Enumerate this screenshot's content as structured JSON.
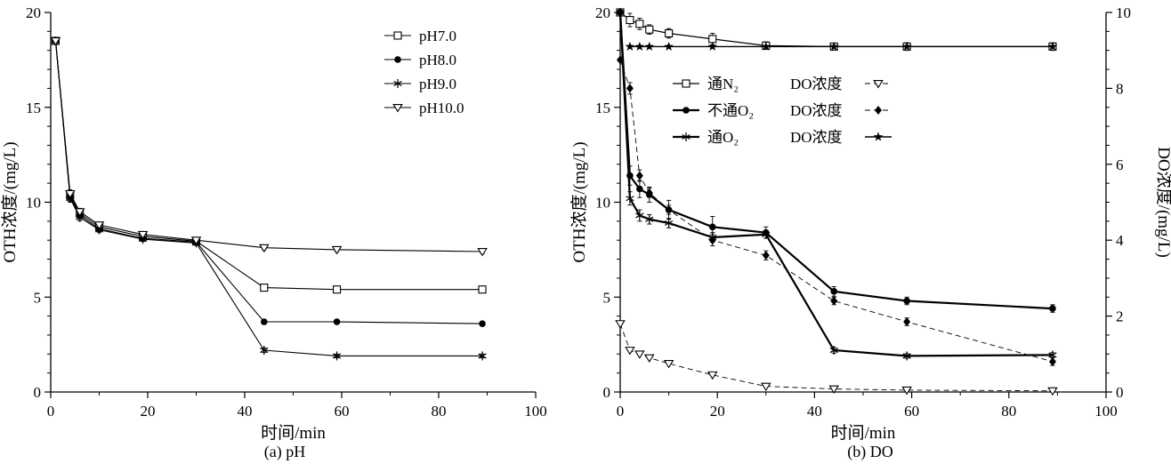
{
  "figure": {
    "background": "#ffffff",
    "ink_color": "#000000",
    "panel_captions": [
      "(a) pH",
      "(b) DO"
    ]
  },
  "chart_data": [
    {
      "type": "line",
      "caption": "(a) pH",
      "xlabel": "时间/min",
      "ylabel_left": "OTH浓度/(mg/L)",
      "xlim": [
        0,
        100
      ],
      "ylim_left": [
        0,
        20
      ],
      "xticks": [
        0,
        20,
        40,
        60,
        80,
        100
      ],
      "yticks_left": [
        0,
        5,
        10,
        15,
        20
      ],
      "x_minor": 10,
      "y_minor_left": 1,
      "series": [
        {
          "name": "pH7.0",
          "marker": "square-open",
          "line": "solid",
          "width": 1.1,
          "axis": "left",
          "x": [
            1,
            4,
            6,
            10,
            19,
            30,
            44,
            59,
            89
          ],
          "y": [
            18.5,
            10.35,
            9.4,
            8.7,
            8.2,
            7.95,
            5.5,
            5.4,
            5.4
          ],
          "yerr": [
            0,
            0.25,
            0.2,
            0.15,
            0.15,
            0.12,
            0.12,
            0.1,
            0.1
          ]
        },
        {
          "name": "pH8.0",
          "marker": "circle-filled",
          "line": "solid",
          "width": 1.1,
          "axis": "left",
          "x": [
            1,
            4,
            6,
            10,
            19,
            30,
            44,
            59,
            89
          ],
          "y": [
            18.5,
            10.3,
            9.3,
            8.6,
            8.1,
            7.9,
            3.7,
            3.7,
            3.6
          ],
          "yerr": [
            0,
            0.25,
            0.2,
            0.15,
            0.15,
            0.12,
            0.12,
            0.1,
            0.1
          ]
        },
        {
          "name": "pH9.0",
          "marker": "asterisk",
          "line": "solid",
          "width": 1.1,
          "axis": "left",
          "x": [
            1,
            4,
            6,
            10,
            19,
            30,
            44,
            59,
            89
          ],
          "y": [
            18.5,
            10.2,
            9.2,
            8.55,
            8.05,
            7.85,
            2.2,
            1.9,
            1.9
          ],
          "yerr": [
            0,
            0.2,
            0.18,
            0.15,
            0.12,
            0.12,
            0.12,
            0.1,
            0.1
          ]
        },
        {
          "name": "pH10.0",
          "marker": "triangle-down-open",
          "line": "solid",
          "width": 1.1,
          "axis": "left",
          "x": [
            1,
            4,
            6,
            10,
            19,
            30,
            44,
            59,
            89
          ],
          "y": [
            18.5,
            10.45,
            9.5,
            8.8,
            8.3,
            8.0,
            7.6,
            7.5,
            7.4
          ],
          "yerr": [
            0,
            0.2,
            0.18,
            0.15,
            0.12,
            0.12,
            0.1,
            0.1,
            0.1
          ]
        }
      ],
      "legend": {
        "type": "list",
        "entries": [
          {
            "series_index": 0,
            "label": "pH7.0"
          },
          {
            "series_index": 1,
            "label": "pH8.0"
          },
          {
            "series_index": 2,
            "label": "pH9.0"
          },
          {
            "series_index": 3,
            "label": "pH10.0"
          }
        ]
      }
    },
    {
      "type": "line",
      "caption": "(b) DO",
      "xlabel": "时间/min",
      "ylabel_left": "OTH浓度/(mg/L)",
      "ylabel_right": "DO浓度/(mg/L)",
      "xlim": [
        0,
        100
      ],
      "ylim_left": [
        0,
        20
      ],
      "ylim_right": [
        0,
        10
      ],
      "xticks": [
        0,
        20,
        40,
        60,
        80,
        100
      ],
      "yticks_left": [
        0,
        5,
        10,
        15,
        20
      ],
      "yticks_right": [
        0,
        2,
        4,
        6,
        8,
        10
      ],
      "x_minor": 10,
      "y_minor_left": 1,
      "y_minor_right": 0.5,
      "series": [
        {
          "name": "通N₂",
          "marker": "square-open",
          "line": "solid",
          "width": 1.2,
          "axis": "left",
          "x": [
            0,
            2,
            4,
            6,
            10,
            19,
            30,
            44,
            59,
            89
          ],
          "y": [
            20,
            19.6,
            19.4,
            19.1,
            18.9,
            18.6,
            18.25,
            18.2,
            18.2,
            18.2
          ],
          "yerr": [
            0,
            0.35,
            0.3,
            0.25,
            0.25,
            0.3,
            0.2,
            0.15,
            0.2,
            0.2
          ]
        },
        {
          "name": "不通O₂",
          "marker": "circle-filled",
          "line": "solid",
          "width": 2.2,
          "axis": "left",
          "x": [
            0,
            2,
            4,
            6,
            10,
            19,
            30,
            44,
            59,
            89
          ],
          "y": [
            20,
            11.4,
            10.7,
            10.4,
            9.6,
            8.7,
            8.4,
            5.3,
            4.8,
            4.4
          ],
          "yerr": [
            0,
            0.5,
            0.45,
            0.4,
            0.5,
            0.55,
            0.3,
            0.25,
            0.2,
            0.2
          ]
        },
        {
          "name": "通O₂",
          "marker": "asterisk",
          "line": "solid",
          "width": 2.2,
          "axis": "left",
          "x": [
            0,
            2,
            4,
            6,
            10,
            19,
            30,
            44,
            59,
            89
          ],
          "y": [
            20,
            10.2,
            9.3,
            9.1,
            8.9,
            8.15,
            8.3,
            2.2,
            1.9,
            1.95
          ],
          "yerr": [
            0,
            0.35,
            0.3,
            0.25,
            0.25,
            0.25,
            0.2,
            0.15,
            0.12,
            0.12
          ]
        },
        {
          "name": "通N₂ DO浓度",
          "marker": "triangle-down-open",
          "line": "dashed",
          "width": 0.9,
          "axis": "right",
          "x": [
            0,
            2,
            4,
            6,
            10,
            19,
            30,
            44,
            59,
            89
          ],
          "y": [
            1.8,
            1.1,
            1.0,
            0.9,
            0.75,
            0.45,
            0.15,
            0.08,
            0.05,
            0.03
          ]
        },
        {
          "name": "不通O₂ DO浓度",
          "marker": "diamond-filled",
          "line": "dashed",
          "width": 0.9,
          "axis": "right",
          "x": [
            0,
            2,
            4,
            6,
            10,
            19,
            30,
            44,
            59,
            89
          ],
          "y": [
            8.75,
            8.0,
            5.7,
            5.25,
            4.8,
            4.0,
            3.6,
            2.4,
            1.85,
            0.8
          ],
          "yerr": [
            0,
            0.15,
            0.15,
            0.12,
            0.12,
            0.15,
            0.12,
            0.1,
            0.1,
            0.1
          ]
        },
        {
          "name": "通O₂ DO浓度",
          "marker": "star-filled",
          "line": "solid",
          "width": 1.4,
          "axis": "right",
          "x": [
            2,
            4,
            6,
            10,
            19,
            30,
            44,
            59,
            89
          ],
          "y": [
            9.1,
            9.1,
            9.1,
            9.1,
            9.1,
            9.1,
            9.1,
            9.1,
            9.1
          ]
        }
      ],
      "legend": {
        "type": "grid",
        "rows": [
          {
            "left": {
              "series_index": 0,
              "label": "通N₂"
            },
            "right": {
              "series_index": 3,
              "label": "DO浓度"
            }
          },
          {
            "left": {
              "series_index": 1,
              "label": "不通O₂"
            },
            "right": {
              "series_index": 4,
              "label": "DO浓度"
            }
          },
          {
            "left": {
              "series_index": 2,
              "label": "通O₂"
            },
            "right": {
              "series_index": 5,
              "label": "DO浓度"
            }
          }
        ]
      }
    }
  ]
}
